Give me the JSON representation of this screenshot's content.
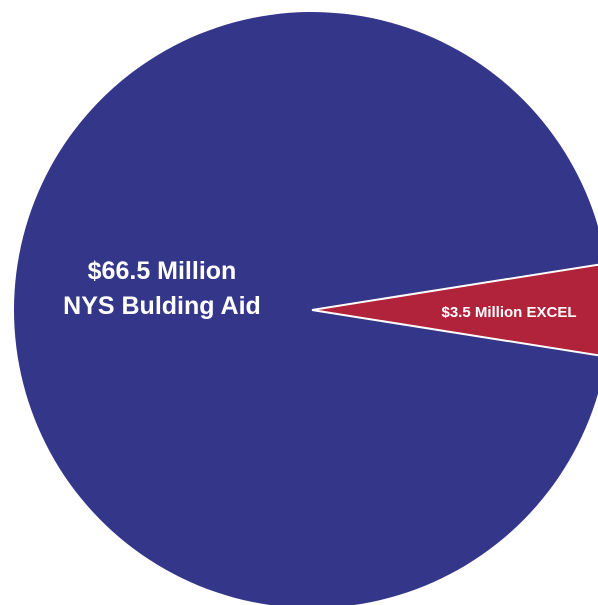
{
  "chart_data": {
    "type": "pie",
    "slices": [
      {
        "value": 66.5,
        "label_line1": "$66.5 Million",
        "label_line2": "NYS Bulding Aid",
        "color": "#343689"
      },
      {
        "value": 3.5,
        "label_line1": "$3.5 Million EXCEL",
        "color": "#b1233a"
      }
    ]
  }
}
